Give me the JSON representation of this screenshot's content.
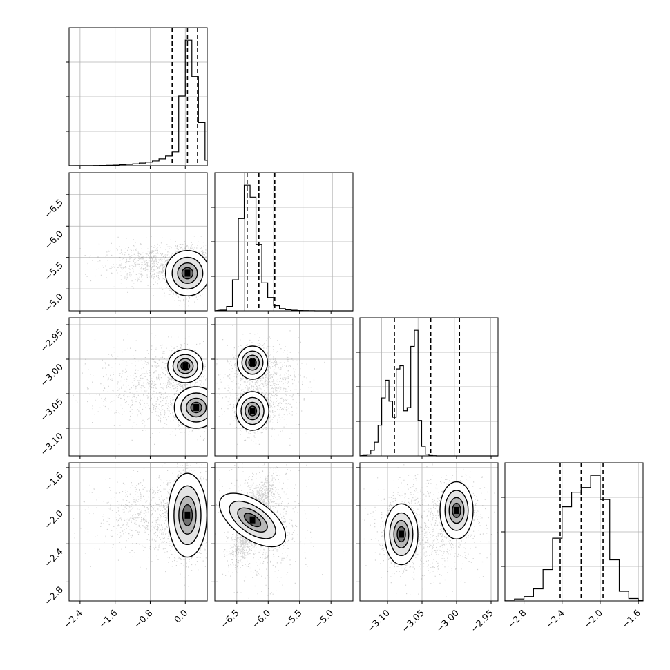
{
  "chart_data": {
    "type": "corner",
    "grid": true,
    "n_params": 4,
    "histograms": [
      {
        "param": 0,
        "bins": [
          -2.4,
          -2.25,
          -2.1,
          -1.95,
          -1.8,
          -1.65,
          -1.5,
          -1.35,
          -1.2,
          -1.05,
          -0.9,
          -0.75,
          -0.6,
          -0.45,
          -0.3,
          -0.15,
          0.0,
          0.15,
          0.3,
          0.45,
          0.6
        ],
        "counts": [
          1,
          2,
          3,
          4,
          6,
          9,
          14,
          20,
          28,
          38,
          52,
          70,
          100,
          140,
          200,
          1000,
          1800,
          1280,
          620,
          80
        ],
        "quantiles": [
          -0.3,
          0.05,
          0.28
        ],
        "xlim": [
          -2.65,
          0.5
        ]
      },
      {
        "param": 1,
        "bins": [
          -6.9,
          -6.8,
          -6.7,
          -6.6,
          -6.5,
          -6.4,
          -6.3,
          -6.2,
          -6.1,
          -6.0,
          -5.9,
          -5.8,
          -5.7,
          -5.6,
          -5.5,
          -5.4,
          -5.3,
          -5.2
        ],
        "counts": [
          10,
          60,
          420,
          1250,
          1700,
          1540,
          900,
          380,
          180,
          70,
          30,
          15,
          8,
          4,
          2,
          1,
          0
        ],
        "quantiles": [
          -6.45,
          -6.25,
          -5.98
        ],
        "xlim": [
          -7.0,
          -4.65
        ]
      },
      {
        "param": 2,
        "bins": [
          -3.125,
          -3.12,
          -3.115,
          -3.11,
          -3.105,
          -3.1,
          -3.095,
          -3.09,
          -3.085,
          -3.08,
          -3.075,
          -3.07,
          -3.065,
          -3.06,
          -3.055,
          -3.05,
          -3.045,
          -3.04,
          -3.035,
          -3.03,
          -3.025,
          -3.02,
          -3.015,
          -3.01,
          -3.005,
          -3.0,
          -2.995,
          -2.99,
          -2.985,
          -2.98,
          -2.975,
          -2.97,
          -2.965,
          -2.96,
          -2.955,
          -2.95,
          -2.945,
          -2.94
        ],
        "counts": [
          3,
          10,
          35,
          85,
          190,
          360,
          470,
          340,
          240,
          540,
          560,
          280,
          300,
          680,
          780,
          220,
          60,
          10,
          2,
          1,
          0,
          0,
          0,
          0,
          0,
          0,
          0,
          0,
          0,
          0,
          0,
          0,
          0,
          0,
          0,
          0,
          0
        ],
        "quantiles": [
          -3.0825,
          -3.0325,
          -2.993
        ],
        "xlim": [
          -3.13,
          -2.94
        ]
      },
      {
        "param": 3,
        "bins": [
          -3.0,
          -2.9,
          -2.8,
          -2.7,
          -2.6,
          -2.5,
          -2.4,
          -2.3,
          -2.2,
          -2.1,
          -2.0,
          -1.9,
          -1.8,
          -1.7,
          -1.6,
          -1.5
        ],
        "counts": [
          4,
          8,
          18,
          50,
          130,
          260,
          390,
          450,
          470,
          520,
          420,
          170,
          40,
          10,
          2
        ],
        "quantiles": [
          -2.42,
          -2.2,
          -1.97
        ],
        "xlim": [
          -3.0,
          -1.55
        ]
      }
    ],
    "axis_ranges": {
      "p0": [
        -2.65,
        0.5
      ],
      "p1": [
        -6.85,
        -4.65
      ],
      "p2": [
        -3.14,
        -2.94
      ],
      "p3": [
        -3.0,
        -1.55
      ]
    },
    "ticks": {
      "p0": [
        "-2.4",
        "-1.6",
        "-0.8",
        "0.0"
      ],
      "p1": [
        "-6.5",
        "-6.0",
        "-5.5",
        "-5.0"
      ],
      "p2_y": [
        "-2.95",
        "-3.00",
        "-3.05",
        "-3.10"
      ],
      "p2_x": [
        "-3.10",
        "-3.05",
        "-3.00",
        "-2.95"
      ],
      "p3_y": [
        "-1.6",
        "-2.0",
        "-2.4",
        "-2.8"
      ],
      "p3_x": [
        "-2.8",
        "-2.4",
        "-2.0",
        "-1.6"
      ]
    },
    "tick_values": {
      "p0": [
        -2.4,
        -1.6,
        -0.8,
        0.0
      ],
      "p1": [
        -6.5,
        -6.0,
        -5.5,
        -5.0
      ],
      "p2": [
        -3.1,
        -3.05,
        -3.0,
        -2.95
      ],
      "p3": [
        -2.8,
        -2.4,
        -2.0,
        -1.6
      ]
    },
    "scatter_panels": [
      {
        "x": 0,
        "y": 1,
        "modes": [
          {
            "cx": 0.05,
            "cy": -6.25,
            "sx": 0.25,
            "sy": 0.18,
            "w": 1.0
          }
        ],
        "tail": {
          "cx": -0.5,
          "cy": -6.1,
          "sx": 0.7,
          "sy": 0.15
        }
      },
      {
        "x": 0,
        "y": 2,
        "modes": [
          {
            "cx": 0.0,
            "cy": -3.01,
            "sx": 0.2,
            "sy": 0.012,
            "w": 0.5
          },
          {
            "cx": 0.25,
            "cy": -3.07,
            "sx": 0.25,
            "sy": 0.015,
            "w": 0.5
          }
        ],
        "tail": {
          "cx": -0.6,
          "cy": -3.04,
          "sx": 0.7,
          "sy": 0.03
        }
      },
      {
        "x": 0,
        "y": 3,
        "modes": [
          {
            "cx": 0.05,
            "cy": -2.1,
            "sx": 0.22,
            "sy": 0.22,
            "w": 1.0
          }
        ],
        "tail": {
          "cx": -0.6,
          "cy": -2.1,
          "sx": 0.7,
          "sy": 0.2
        }
      },
      {
        "x": 1,
        "y": 2,
        "modes": [
          {
            "cx": -6.25,
            "cy": -3.005,
            "sx": 0.12,
            "sy": 0.012,
            "w": 0.5
          },
          {
            "cx": -6.25,
            "cy": -3.075,
            "sx": 0.13,
            "sy": 0.014,
            "w": 0.5
          }
        ],
        "tail": {
          "cx": -6.1,
          "cy": -3.04,
          "sx": 0.3,
          "sy": 0.03
        }
      },
      {
        "x": 1,
        "y": 3,
        "modes": [
          {
            "cx": -6.25,
            "cy": -2.15,
            "sx": 0.15,
            "sy": 0.2,
            "w": 1.0,
            "rho": 0.8
          }
        ],
        "tail": {
          "cx": -6.1,
          "cy": -2.2,
          "sx": 0.3,
          "sy": 0.3
        }
      },
      {
        "x": 2,
        "y": 3,
        "modes": [
          {
            "cx": -3.08,
            "cy": -2.3,
            "sx": 0.012,
            "sy": 0.16,
            "w": 0.5
          },
          {
            "cx": -3.0,
            "cy": -2.05,
            "sx": 0.012,
            "sy": 0.15,
            "w": 0.5
          }
        ],
        "tail": {
          "cx": -3.04,
          "cy": -2.2,
          "sx": 0.04,
          "sy": 0.3
        }
      }
    ]
  }
}
